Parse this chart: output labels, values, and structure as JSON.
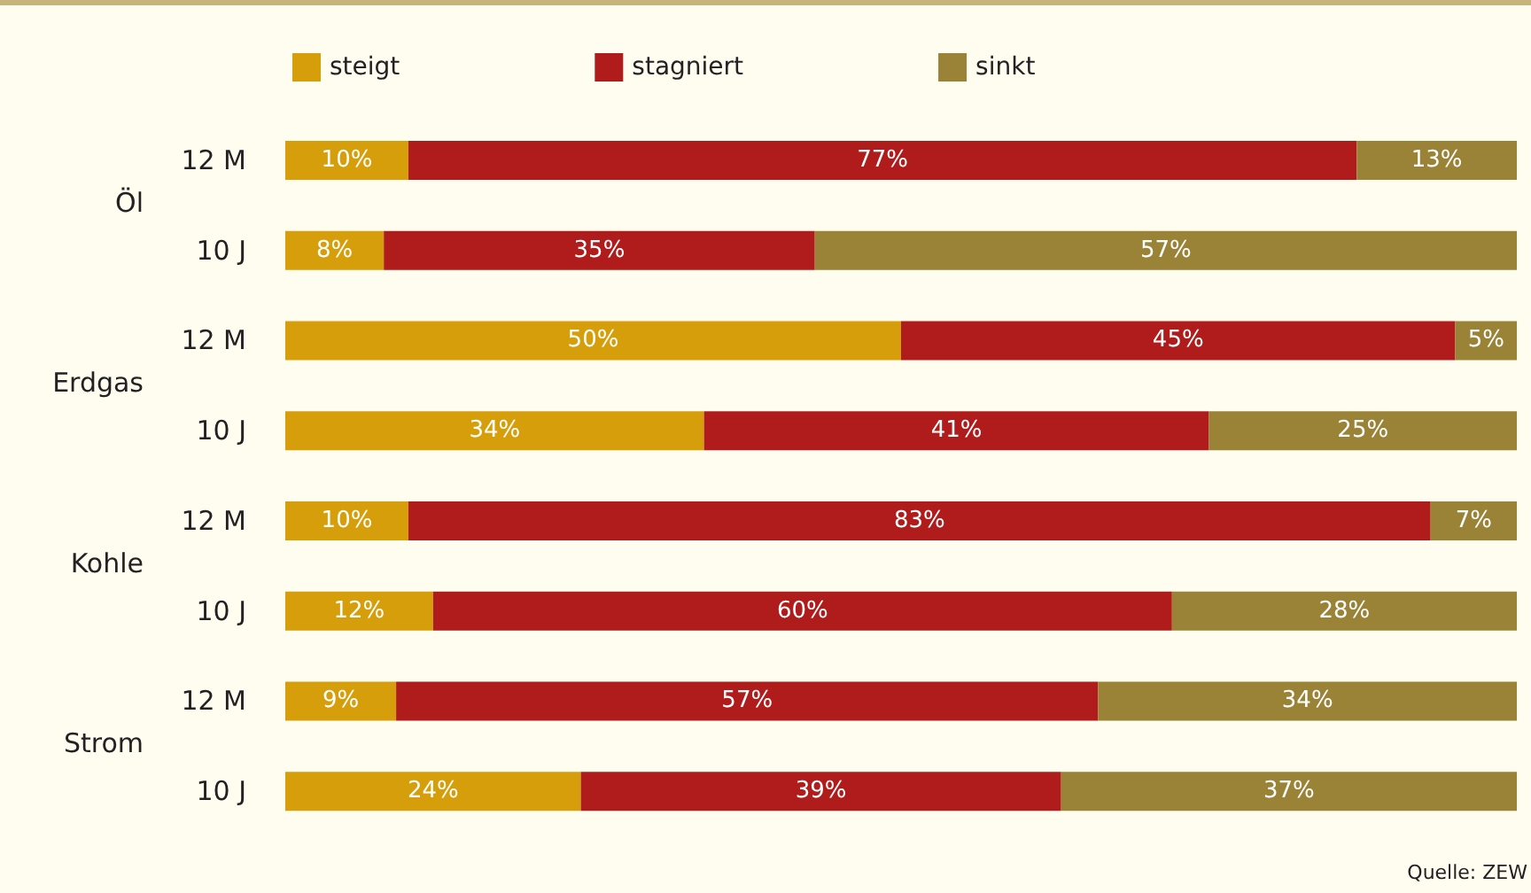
{
  "chart_data": {
    "type": "bar",
    "orientation": "horizontal",
    "stacked": true,
    "legend": "top",
    "categories": [
      "12 M",
      "10 J",
      "12 M",
      "10 J",
      "12 M",
      "10 J",
      "12 M",
      "10 J"
    ],
    "series": [
      {
        "name": "steigt",
        "color": "#d59e0a",
        "values": [
          10,
          8,
          50,
          34,
          10,
          12,
          9,
          24
        ],
        "value_labels": [
          "10%",
          "8%",
          "50%",
          "34%",
          "10%",
          "12%",
          "9%",
          "24%"
        ]
      },
      {
        "name": "stagniert",
        "color": "#b01c1c",
        "values": [
          77,
          35,
          45,
          41,
          83,
          60,
          57,
          39
        ],
        "value_labels": [
          "77%",
          "35%",
          "45%",
          "41%",
          "83%",
          "60%",
          "57%",
          "39%"
        ]
      },
      {
        "name": "sinkt",
        "color": "#9a8236",
        "values": [
          13,
          57,
          5,
          25,
          7,
          28,
          34,
          37
        ],
        "value_labels": [
          "13%",
          "57%",
          "5%",
          "25%",
          "7%",
          "28%",
          "34%",
          "37%"
        ]
      }
    ],
    "annotations": [
      "Öl",
      "Erdgas",
      "Kohle",
      "Strom",
      "Quelle: ZEW"
    ]
  }
}
